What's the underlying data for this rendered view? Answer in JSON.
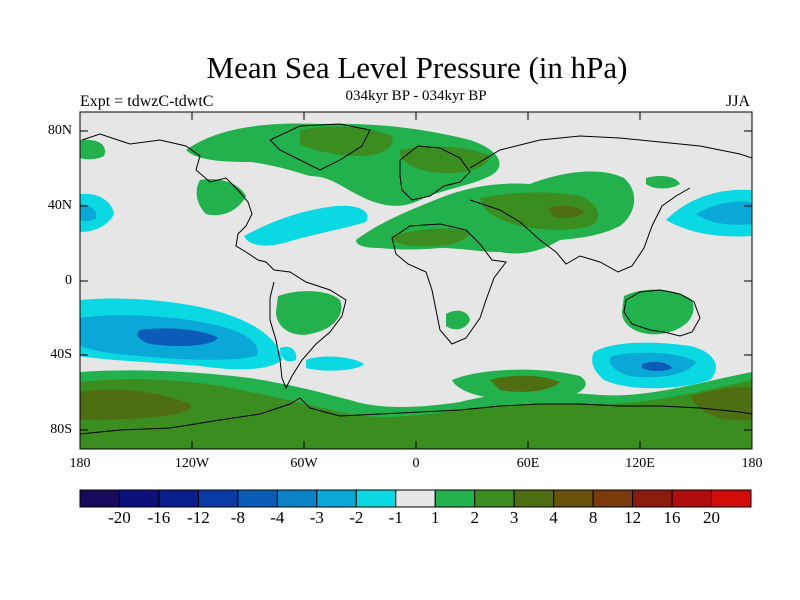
{
  "title": "Mean Sea Level Pressure (in hPa)",
  "subtitle_left": "Expt = tdwzC-tdwtC",
  "subtitle_center": "034kyr BP - 034kyr BP",
  "subtitle_right": "JJA",
  "lat_labels": [
    "80N",
    "40N",
    "0",
    "40S",
    "80S"
  ],
  "lon_labels": [
    "180",
    "120W",
    "60W",
    "0",
    "60E",
    "120E",
    "180"
  ],
  "colorbar": {
    "colors": [
      "#1a0a5c",
      "#0d0f7a",
      "#0a1e90",
      "#0a3aa5",
      "#0b5cb8",
      "#0a82c8",
      "#0aa8d6",
      "#0ad8e3",
      "#e6e6e6",
      "#22b14c",
      "#3b8d20",
      "#4f6e12",
      "#6b520b",
      "#7b3a0c",
      "#8b1c0c",
      "#b00d0d",
      "#d10a0a"
    ],
    "labels": [
      "-20",
      "-16",
      "-12",
      "-8",
      "-4",
      "-3",
      "-2",
      "-1",
      "1",
      "2",
      "3",
      "4",
      "8",
      "12",
      "16",
      "20"
    ]
  },
  "chart_data": {
    "type": "heatmap",
    "title": "Mean Sea Level Pressure (in hPa)",
    "variable": "mean sea level pressure difference",
    "units": "hPa",
    "season": "JJA",
    "xlabel": "",
    "ylabel": "",
    "xlim": [
      -180,
      180
    ],
    "ylim": [
      -90,
      90
    ],
    "levels": [
      -20,
      -16,
      -12,
      -8,
      -4,
      -3,
      -2,
      -1,
      1,
      2,
      3,
      4,
      8,
      12,
      16,
      20
    ],
    "regions": [
      {
        "name": "Antarctica / Southern Ocean",
        "approx_value": 3
      },
      {
        "name": "Arctic / northern Eurasia",
        "approx_value": 2
      },
      {
        "name": "Central Asia",
        "approx_value": 3
      },
      {
        "name": "South Pacific subtropics",
        "approx_value": -3
      },
      {
        "name": "Southern Indian Ocean (south of Australia)",
        "approx_value": -3
      },
      {
        "name": "North Pacific east",
        "approx_value": -2
      },
      {
        "name": "North Atlantic",
        "approx_value": -1
      },
      {
        "name": "South America interior",
        "approx_value": 2
      },
      {
        "name": "Australia",
        "approx_value": 2
      }
    ]
  }
}
